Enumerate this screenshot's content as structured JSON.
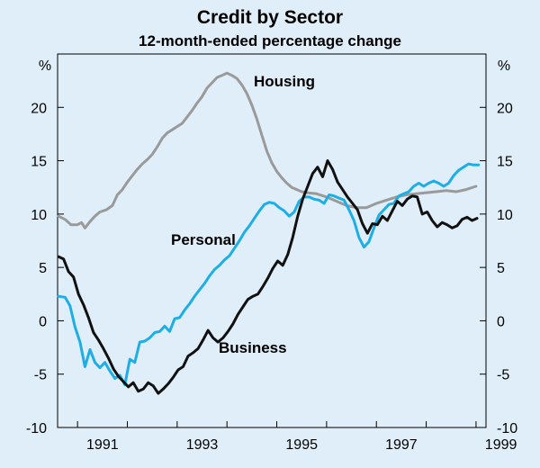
{
  "chart_data": {
    "type": "line",
    "title": "Credit by Sector",
    "subtitle": "12-month-ended percentage change",
    "ylabel_left": "%",
    "ylabel_right": "%",
    "ylim": [
      -10,
      25
    ],
    "yticks": [
      -10,
      -5,
      0,
      5,
      10,
      15,
      20
    ],
    "xlim": [
      1990.6,
      1999.2
    ],
    "xticks": [
      1991,
      1993,
      1995,
      1997,
      1999
    ],
    "grid": false,
    "series": [
      {
        "name": "Housing",
        "color": "#9a9a9a",
        "x": [
          1990.62,
          1990.75,
          1990.87,
          1991.0,
          1991.08,
          1991.15,
          1991.25,
          1991.35,
          1991.45,
          1991.58,
          1991.7,
          1991.8,
          1991.9,
          1992.0,
          1992.1,
          1992.2,
          1992.3,
          1992.4,
          1992.5,
          1992.6,
          1992.7,
          1992.8,
          1992.9,
          1993.0,
          1993.1,
          1993.2,
          1993.3,
          1993.4,
          1993.5,
          1993.6,
          1993.7,
          1993.8,
          1993.9,
          1994.0,
          1994.1,
          1994.2,
          1994.3,
          1994.4,
          1994.5,
          1994.6,
          1994.7,
          1994.8,
          1994.9,
          1995.0,
          1995.1,
          1995.2,
          1995.3,
          1995.4,
          1995.5,
          1995.6,
          1995.8,
          1996.0,
          1996.2,
          1996.4,
          1996.6,
          1996.8,
          1997.0,
          1997.2,
          1997.4,
          1997.6,
          1997.8,
          1998.0,
          1998.2,
          1998.4,
          1998.6,
          1998.8,
          1999.0
        ],
        "values": [
          9.8,
          9.5,
          9.0,
          9.0,
          9.2,
          8.7,
          9.3,
          9.8,
          10.2,
          10.4,
          10.8,
          11.8,
          12.3,
          13.0,
          13.6,
          14.2,
          14.7,
          15.1,
          15.6,
          16.3,
          17.1,
          17.6,
          17.9,
          18.2,
          18.5,
          19.1,
          19.7,
          20.4,
          21.0,
          21.8,
          22.3,
          22.8,
          23.0,
          23.2,
          23.0,
          22.7,
          22.1,
          21.3,
          20.2,
          18.9,
          17.4,
          15.9,
          14.8,
          14.0,
          13.4,
          12.9,
          12.5,
          12.3,
          12.1,
          12.0,
          11.9,
          11.6,
          11.2,
          10.8,
          10.6,
          10.6,
          11.0,
          11.3,
          11.6,
          11.8,
          11.9,
          12.0,
          12.1,
          12.2,
          12.1,
          12.3,
          12.6
        ]
      },
      {
        "name": "Personal",
        "color": "#1eaee6",
        "x": [
          1990.62,
          1990.75,
          1990.85,
          1990.95,
          1991.05,
          1991.15,
          1991.25,
          1991.35,
          1991.45,
          1991.55,
          1991.65,
          1991.75,
          1991.85,
          1991.95,
          1992.05,
          1992.15,
          1992.25,
          1992.35,
          1992.45,
          1992.55,
          1992.65,
          1992.75,
          1992.85,
          1992.95,
          1993.05,
          1993.15,
          1993.25,
          1993.35,
          1993.45,
          1993.55,
          1993.65,
          1993.75,
          1993.85,
          1993.95,
          1994.05,
          1994.15,
          1994.25,
          1994.35,
          1994.45,
          1994.55,
          1994.65,
          1994.75,
          1994.85,
          1994.95,
          1995.05,
          1995.15,
          1995.25,
          1995.35,
          1995.45,
          1995.55,
          1995.65,
          1995.75,
          1995.85,
          1995.95,
          1996.05,
          1996.15,
          1996.25,
          1996.35,
          1996.45,
          1996.55,
          1996.65,
          1996.75,
          1996.85,
          1996.95,
          1997.05,
          1997.15,
          1997.25,
          1997.35,
          1997.45,
          1997.55,
          1997.65,
          1997.75,
          1997.85,
          1997.95,
          1998.05,
          1998.15,
          1998.25,
          1998.35,
          1998.45,
          1998.55,
          1998.65,
          1998.75,
          1998.85,
          1998.95,
          1999.05
        ],
        "values": [
          2.3,
          2.2,
          1.4,
          -0.6,
          -2.0,
          -4.3,
          -2.7,
          -3.9,
          -4.4,
          -3.9,
          -4.7,
          -5.4,
          -5.1,
          -6.0,
          -3.6,
          -3.9,
          -2.0,
          -1.9,
          -1.6,
          -1.1,
          -1.0,
          -0.5,
          -1.0,
          0.2,
          0.3,
          1.0,
          1.6,
          2.3,
          2.9,
          3.5,
          4.2,
          4.8,
          5.2,
          5.7,
          6.1,
          6.8,
          7.5,
          8.3,
          8.9,
          9.6,
          10.3,
          10.9,
          11.1,
          11.0,
          10.6,
          10.3,
          9.8,
          10.2,
          11.2,
          11.6,
          11.6,
          11.4,
          11.3,
          11.0,
          11.8,
          11.7,
          11.5,
          11.3,
          10.4,
          9.4,
          7.8,
          6.9,
          7.4,
          8.7,
          9.9,
          10.4,
          10.9,
          11.0,
          11.7,
          11.9,
          12.1,
          12.6,
          12.9,
          12.6,
          12.9,
          13.1,
          12.9,
          12.6,
          12.9,
          13.6,
          14.1,
          14.4,
          14.7,
          14.6,
          14.6
        ]
      },
      {
        "name": "Business",
        "color": "#111111",
        "x": [
          1990.62,
          1990.72,
          1990.82,
          1990.92,
          1991.02,
          1991.12,
          1991.22,
          1991.32,
          1991.42,
          1991.52,
          1991.62,
          1991.72,
          1991.82,
          1991.92,
          1992.02,
          1992.12,
          1992.22,
          1992.32,
          1992.42,
          1992.52,
          1992.62,
          1992.72,
          1992.82,
          1992.92,
          1993.02,
          1993.12,
          1993.22,
          1993.32,
          1993.42,
          1993.52,
          1993.62,
          1993.72,
          1993.82,
          1993.92,
          1994.02,
          1994.12,
          1994.22,
          1994.32,
          1994.42,
          1994.52,
          1994.62,
          1994.72,
          1994.82,
          1994.92,
          1995.02,
          1995.12,
          1995.22,
          1995.32,
          1995.42,
          1995.52,
          1995.62,
          1995.72,
          1995.82,
          1995.92,
          1996.02,
          1996.12,
          1996.22,
          1996.32,
          1996.42,
          1996.52,
          1996.62,
          1996.72,
          1996.82,
          1996.92,
          1997.02,
          1997.12,
          1997.22,
          1997.32,
          1997.42,
          1997.52,
          1997.62,
          1997.72,
          1997.82,
          1997.92,
          1998.02,
          1998.12,
          1998.22,
          1998.32,
          1998.42,
          1998.52,
          1998.62,
          1998.72,
          1998.82,
          1998.92,
          1999.02
        ],
        "values": [
          6.0,
          5.8,
          4.6,
          4.1,
          2.5,
          1.5,
          0.3,
          -1.1,
          -1.8,
          -2.6,
          -3.5,
          -4.5,
          -5.2,
          -5.7,
          -6.2,
          -5.8,
          -6.6,
          -6.4,
          -5.8,
          -6.1,
          -6.8,
          -6.4,
          -5.9,
          -5.3,
          -4.6,
          -4.3,
          -3.3,
          -3.0,
          -2.6,
          -1.8,
          -0.9,
          -1.6,
          -2.0,
          -1.6,
          -1.0,
          -0.3,
          0.6,
          1.3,
          2.0,
          2.3,
          2.5,
          3.2,
          4.0,
          4.9,
          5.6,
          5.2,
          6.2,
          7.8,
          9.8,
          11.4,
          12.6,
          13.8,
          14.4,
          13.5,
          15.0,
          14.2,
          13.0,
          12.3,
          11.6,
          11.0,
          10.4,
          9.1,
          8.2,
          9.1,
          9.0,
          9.8,
          9.4,
          10.3,
          11.2,
          10.8,
          11.4,
          11.7,
          11.6,
          10.0,
          10.2,
          9.4,
          8.8,
          9.2,
          9.0,
          8.7,
          8.9,
          9.5,
          9.7,
          9.4,
          9.6
        ]
      }
    ],
    "series_labels": [
      "Housing",
      "Personal",
      "Business"
    ]
  }
}
